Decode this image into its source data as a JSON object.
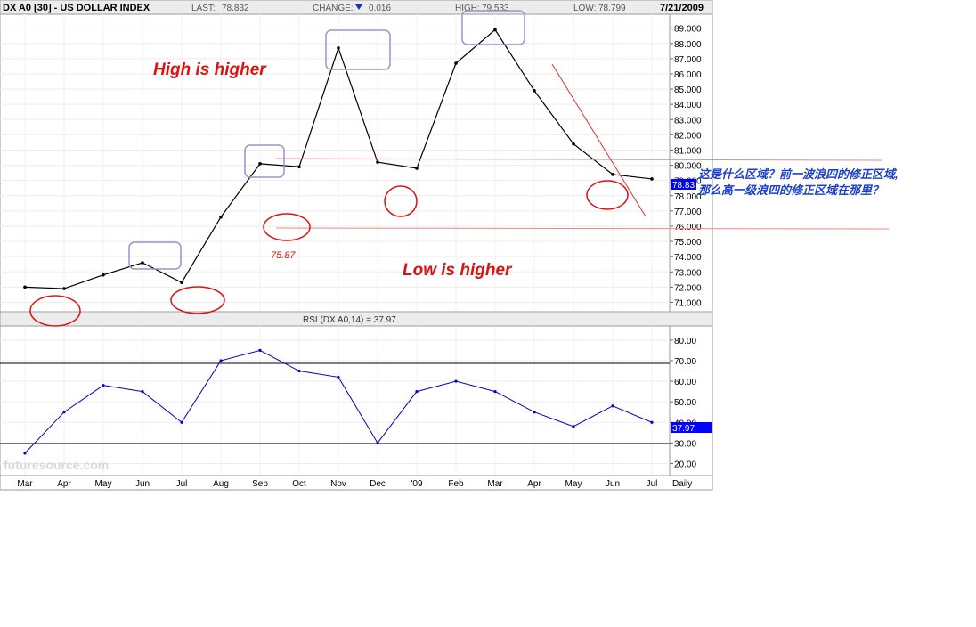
{
  "header": {
    "symbol": "DX A0 [30] - US DOLLAR INDEX",
    "last_label": "LAST:",
    "last_value": "78.832",
    "change_label": "CHANGE:",
    "change_value": "0.016",
    "high_label": "HIGH:",
    "high_value": "79.533",
    "low_label": "LOW:",
    "low_value": "78.799",
    "date": "7/21/2009"
  },
  "annotations": {
    "high_higher": "High is higher",
    "low_higher": "Low is higher",
    "low_point_label": "75.87",
    "question_line1": "这是什么区域？前一波浪四的修正区域,",
    "question_line2": "那么高一级浪四的修正区域在那里？"
  },
  "price_panel": {
    "last_price_marker": "78.83",
    "y_ticks": [
      "89.000",
      "88.000",
      "87.000",
      "86.000",
      "85.000",
      "84.000",
      "83.000",
      "82.000",
      "81.000",
      "80.000",
      "79.000",
      "78.000",
      "77.000",
      "76.000",
      "75.000",
      "74.000",
      "73.000",
      "72.000",
      "71.000"
    ]
  },
  "rsi_panel": {
    "label": "RSI (DX A0,14) = 37.97",
    "last_value_marker": "37.97",
    "y_ticks": [
      "80.00",
      "70.00",
      "60.00",
      "50.00",
      "40.00",
      "30.00",
      "20.00"
    ]
  },
  "x_axis": {
    "labels": [
      "Mar",
      "Apr",
      "May",
      "Jun",
      "Jul",
      "Aug",
      "Sep",
      "Oct",
      "Nov",
      "Dec",
      "'09",
      "Feb",
      "Mar",
      "Apr",
      "May",
      "Jun",
      "Jul"
    ],
    "period": "Daily"
  },
  "watermark": "futuresource.com",
  "colors": {
    "price": "#000000",
    "rsi": "#0000cc",
    "highlight_box": "#9c93c9",
    "circle": "#e01010",
    "annotation": "#e01010",
    "question": "#1a3fcf",
    "marker_bg": "#0000ff"
  },
  "chart_data": [
    {
      "type": "line",
      "title": "DX A0 [30] - US DOLLAR INDEX",
      "x": [
        "Mar",
        "Apr",
        "May",
        "Jun",
        "Jul",
        "Aug",
        "Sep",
        "Oct",
        "Nov",
        "Dec",
        "'09",
        "Feb",
        "Mar",
        "Apr",
        "May",
        "Jun",
        "Jul"
      ],
      "series": [
        {
          "values": [
            72.0,
            71.9,
            72.8,
            73.6,
            72.3,
            76.6,
            80.1,
            79.9,
            87.7,
            80.2,
            79.8,
            86.7,
            88.9,
            84.9,
            81.4,
            79.4,
            79.1
          ]
        }
      ],
      "ylim": [
        70.5,
        89.8
      ]
    },
    {
      "type": "line",
      "title": "RSI (DX A0,14) = 37.97",
      "x": [
        "Mar",
        "Apr",
        "May",
        "Jun",
        "Jul",
        "Aug",
        "Sep",
        "Oct",
        "Nov",
        "Dec",
        "'09",
        "Feb",
        "Mar",
        "Apr",
        "May",
        "Jun",
        "Jul"
      ],
      "series": [
        {
          "values": [
            25,
            45,
            58,
            55,
            40,
            70,
            75,
            65,
            62,
            30,
            55,
            60,
            55,
            45,
            38,
            48,
            40
          ]
        }
      ],
      "ylim": [
        15,
        86
      ]
    }
  ]
}
